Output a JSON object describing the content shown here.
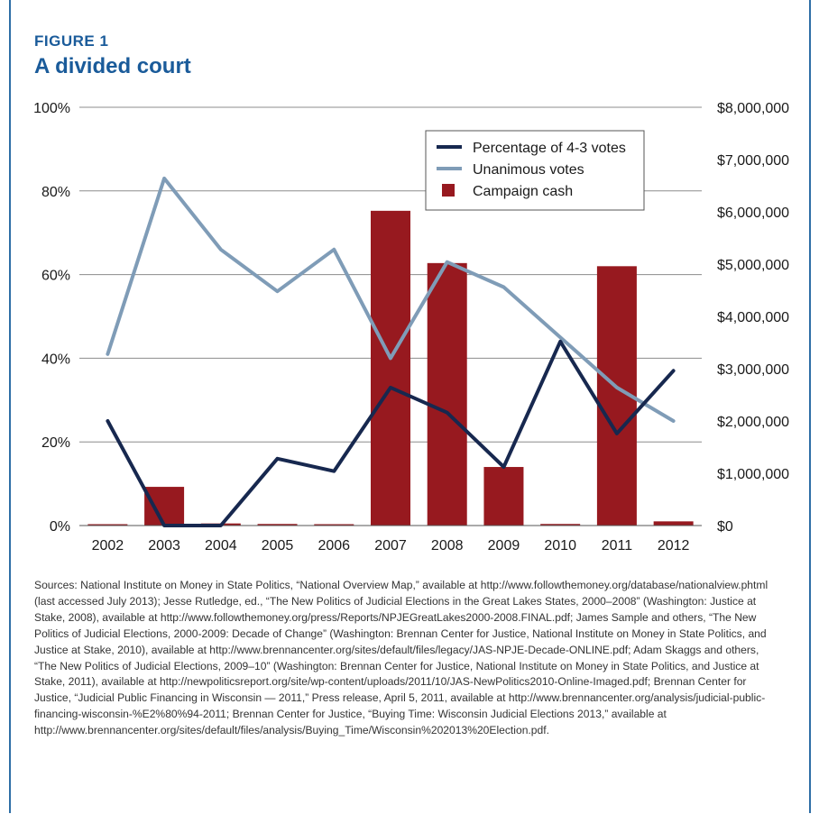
{
  "figure": {
    "label": "FIGURE 1",
    "title": "A divided court"
  },
  "colors": {
    "accent": "#1a5b9a",
    "bars": "#97191f",
    "line_4_3": "#17284f",
    "line_unanimous": "#7f9cb7"
  },
  "chart_data": {
    "type": "bar",
    "categories": [
      "2002",
      "2003",
      "2004",
      "2005",
      "2006",
      "2007",
      "2008",
      "2009",
      "2010",
      "2011",
      "2012"
    ],
    "left_axis": {
      "ticks": [
        "0%",
        "20%",
        "40%",
        "60%",
        "80%",
        "100%"
      ],
      "ylim": [
        0,
        100
      ]
    },
    "right_axis": {
      "ticks": [
        "$0",
        "$1,000,000",
        "$2,000,000",
        "$3,000,000",
        "$4,000,000",
        "$5,000,000",
        "$6,000,000",
        "$7,000,000",
        "$8,000,000"
      ],
      "ylim": [
        0,
        8000000
      ]
    },
    "series": [
      {
        "name": "Percentage of 4-3 votes",
        "kind": "line",
        "axis": "left",
        "values": [
          25,
          0,
          0,
          16,
          13,
          33,
          27,
          14,
          44,
          22,
          37
        ]
      },
      {
        "name": "Unanimous votes",
        "kind": "line",
        "axis": "left",
        "values": [
          41,
          83,
          66,
          56,
          66,
          40,
          63,
          57,
          45,
          33,
          25
        ]
      },
      {
        "name": "Campaign cash",
        "kind": "bar",
        "axis": "right",
        "values": [
          10000,
          740000,
          40000,
          30000,
          10000,
          6020000,
          5020000,
          1120000,
          30000,
          4960000,
          80000
        ]
      }
    ],
    "legend": {
      "placement": "top-right"
    }
  },
  "sources_text": "Sources: National Institute on Money in State Politics, “National Overview Map,” available at http://www.followthemoney.org/database/nationalview.phtml (last accessed July 2013); Jesse Rutledge, ed., “The New Politics of Judicial Elections in the Great Lakes States, 2000–2008” (Washington: Justice at Stake, 2008), available at http://www.followthemoney.org/press/Reports/NPJEGreatLakes2000-2008.FINAL.pdf; James Sample and others, “The New Politics of Judicial Elections, 2000-2009: Decade of Change” (Washington: Brennan Center for Justice, National Institute on Money in State Politics, and Justice at Stake, 2010), available at http://www.brennancenter.org/sites/default/files/legacy/JAS-NPJE-Decade-ONLINE.pdf; Adam Skaggs and others, “The New Politics of Judicial Elections, 2009–10” (Washington: Brennan Center for Justice, National Institute on Money in State Politics, and Justice at Stake, 2011), available at http://newpoliticsreport.org/site/wp-content/uploads/2011/10/JAS-NewPolitics2010-Online-Imaged.pdf; Brennan Center for Justice, “Judicial Public Financing in Wisconsin — 2011,” Press release, April 5, 2011, available at http://www.brennancenter.org/analysis/judicial-public-financing-wisconsin-%E2%80%94-2011; Brennan Center for Justice, “Buying Time: Wisconsin Judicial Elections 2013,” available at http://www.brennancenter.org/sites/default/files/analysis/Buying_Time/Wisconsin%202013%20Election.pdf."
}
